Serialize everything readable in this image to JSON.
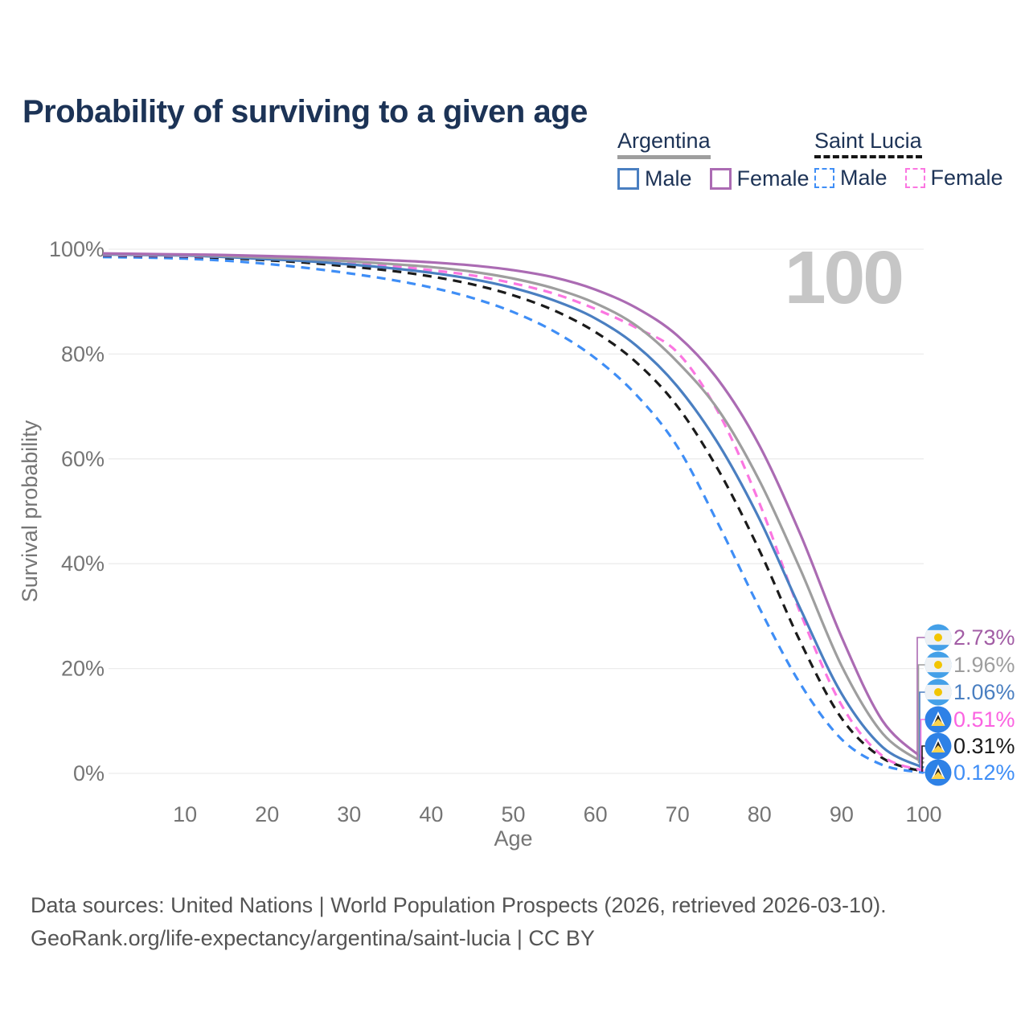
{
  "page": {
    "title": "Probability of surviving to a given age",
    "footer_line1": "Data sources: United Nations | World Population Prospects (2026, retrieved 2026-03-10).",
    "footer_line2": "GeoRank.org/life-expectancy/argentina/saint-lucia | CC BY"
  },
  "legend": {
    "groups": [
      {
        "label": "Argentina",
        "underline_style": "solid",
        "underline_color": "#9e9e9e",
        "items": [
          {
            "label": "Male",
            "swatch_color": "#4a7fc1",
            "swatch_style": "solid"
          },
          {
            "label": "Female",
            "swatch_color": "#ab6bb3",
            "swatch_style": "solid"
          }
        ]
      },
      {
        "label": "Saint Lucia",
        "underline_style": "dashed",
        "underline_color": "#151515",
        "items": [
          {
            "label": "Male",
            "swatch_color": "#3f8ef6",
            "swatch_style": "dashed"
          },
          {
            "label": "Female",
            "swatch_color": "#fb76e1",
            "swatch_style": "dashed"
          }
        ]
      }
    ]
  },
  "chart_data": {
    "type": "line",
    "title": "Probability of surviving to a given age",
    "xlabel": "Age",
    "ylabel": "Survival probability",
    "xlim": [
      0,
      100
    ],
    "ylim": [
      0,
      100
    ],
    "xticks": [
      10,
      20,
      30,
      40,
      50,
      60,
      70,
      80,
      90,
      100
    ],
    "yticks": [
      0,
      20,
      40,
      60,
      80,
      100
    ],
    "ytick_labels": [
      "0%",
      "20%",
      "40%",
      "60%",
      "80%",
      "100%"
    ],
    "grid": "horizontal",
    "legend_position": "top-right",
    "watermark": "100",
    "ages": [
      0,
      5,
      10,
      15,
      20,
      25,
      30,
      35,
      40,
      45,
      50,
      55,
      60,
      65,
      70,
      75,
      80,
      85,
      90,
      95,
      100
    ],
    "series": [
      {
        "id": "argentina-female",
        "country": "Argentina",
        "sex": "Female",
        "color": "#ab6bb3",
        "dash": "solid",
        "flag": "argentina",
        "end_label": "2.73%",
        "end_label_color": "#a25da5",
        "values": [
          99.2,
          99.1,
          99.0,
          98.9,
          98.7,
          98.5,
          98.2,
          97.9,
          97.5,
          96.9,
          96.0,
          94.6,
          92.3,
          88.8,
          83.5,
          75.0,
          62.5,
          45.5,
          26.0,
          10.0,
          2.73
        ]
      },
      {
        "id": "argentina-both",
        "country": "Argentina",
        "sex": "Both sexes",
        "color": "#9e9e9e",
        "dash": "solid",
        "flag": "argentina",
        "end_label": "1.96%",
        "end_label_color": "#9e9e9e",
        "values": [
          99.1,
          99.0,
          98.9,
          98.7,
          98.4,
          98.1,
          97.7,
          97.2,
          96.6,
          95.7,
          94.4,
          92.5,
          89.7,
          85.4,
          78.5,
          69.3,
          55.8,
          38.8,
          20.5,
          7.6,
          1.96
        ]
      },
      {
        "id": "argentina-male",
        "country": "Argentina",
        "sex": "Male",
        "color": "#4a7fc1",
        "dash": "solid",
        "flag": "argentina",
        "end_label": "1.06%",
        "end_label_color": "#4a7fc1",
        "values": [
          99.0,
          98.9,
          98.8,
          98.5,
          98.1,
          97.7,
          97.1,
          96.4,
          95.5,
          94.3,
          92.6,
          90.2,
          86.8,
          81.6,
          73.8,
          62.8,
          48.5,
          31.3,
          15.2,
          5.0,
          1.06
        ]
      },
      {
        "id": "saint-lucia-female",
        "country": "Saint Lucia",
        "sex": "Female",
        "color": "#fb76e1",
        "dash": "dashed",
        "flag": "saint-lucia",
        "end_label": "0.51%",
        "end_label_color": "#fb63e1",
        "values": [
          98.9,
          98.8,
          98.7,
          98.5,
          98.2,
          97.9,
          97.4,
          96.8,
          96.0,
          95.0,
          93.5,
          91.5,
          88.6,
          85.0,
          80.3,
          68.8,
          51.5,
          30.5,
          13.0,
          3.3,
          0.51
        ]
      },
      {
        "id": "saint-lucia-both",
        "country": "Saint Lucia",
        "sex": "Both sexes",
        "color": "#1b1b1b",
        "dash": "dashed",
        "flag": "saint-lucia",
        "end_label": "0.31%",
        "end_label_color": "#1b1b1b",
        "values": [
          98.8,
          98.7,
          98.6,
          98.3,
          97.9,
          97.4,
          96.7,
          95.9,
          94.8,
          93.3,
          91.2,
          88.3,
          84.2,
          78.4,
          70.0,
          57.8,
          42.5,
          25.0,
          10.5,
          2.9,
          0.31
        ]
      },
      {
        "id": "saint-lucia-male",
        "country": "Saint Lucia",
        "sex": "Male",
        "color": "#3f8ef6",
        "dash": "dashed",
        "flag": "saint-lucia",
        "end_label": "0.12%",
        "end_label_color": "#3f8ef6",
        "values": [
          98.5,
          98.4,
          98.2,
          97.8,
          97.2,
          96.4,
          95.4,
          94.2,
          92.7,
          90.7,
          88.0,
          84.3,
          79.2,
          72.2,
          62.3,
          47.5,
          31.5,
          17.0,
          6.5,
          1.6,
          0.12
        ]
      }
    ],
    "flags": {
      "argentina": {
        "stripe": "#44a0e8",
        "middle": "#eef1f4",
        "sun": "#f2c500"
      },
      "saint_lucia": {
        "background": "#2e81e6",
        "triangle_white": "#ffffff",
        "triangle_black": "#222222",
        "triangle_yellow": "#fcd34d"
      }
    }
  }
}
